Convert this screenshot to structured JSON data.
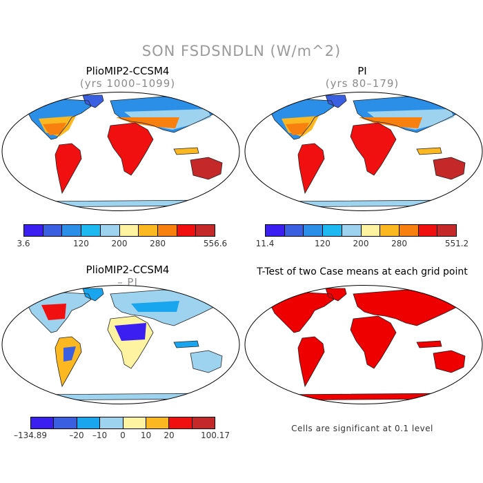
{
  "title": "SON FSDSNDLN (W/m^2)",
  "panels": [
    {
      "id": "p1",
      "title": "PlioMIP2-CCSM4",
      "subtitle": "(yrs 1000–1099)",
      "scheme": "abs"
    },
    {
      "id": "p2",
      "title": "PI",
      "subtitle": "(yrs 80–179)",
      "scheme": "abs"
    },
    {
      "id": "p3",
      "title": "PlioMIP2-CCSM4",
      "subtitle": "– PI",
      "scheme": "diff"
    },
    {
      "id": "p4",
      "title": "T-Test of two Case means at each grid point",
      "subtitle": "",
      "scheme": "sig"
    }
  ],
  "colorbars": [
    {
      "id": "cb1",
      "ticks": [
        "3.6",
        "120",
        "200",
        "280",
        "556.6"
      ]
    },
    {
      "id": "cb2",
      "ticks": [
        "11.4",
        "120",
        "200",
        "280",
        "551.2"
      ]
    },
    {
      "id": "cb3",
      "ticks": [
        "–134.89",
        "–20",
        "–10",
        "0",
        "10",
        "20",
        "100.17"
      ]
    }
  ],
  "colors": {
    "abs": [
      "#3b1ff0",
      "#3a5fe0",
      "#2b8fe8",
      "#1db9f0",
      "#9ed3f0",
      "#fdf3a0",
      "#fcb820",
      "#f8800f",
      "#f01010",
      "#c42828"
    ],
    "diff": [
      "#3b1ff0",
      "#3a5fe0",
      "#1aa6ee",
      "#9ed3f0",
      "#fdf3a0",
      "#fcb820",
      "#f01010",
      "#c42828"
    ],
    "sig": "#ee0000",
    "land_outline": "#222222"
  },
  "note": "Cells are significant at 0.1 level"
}
